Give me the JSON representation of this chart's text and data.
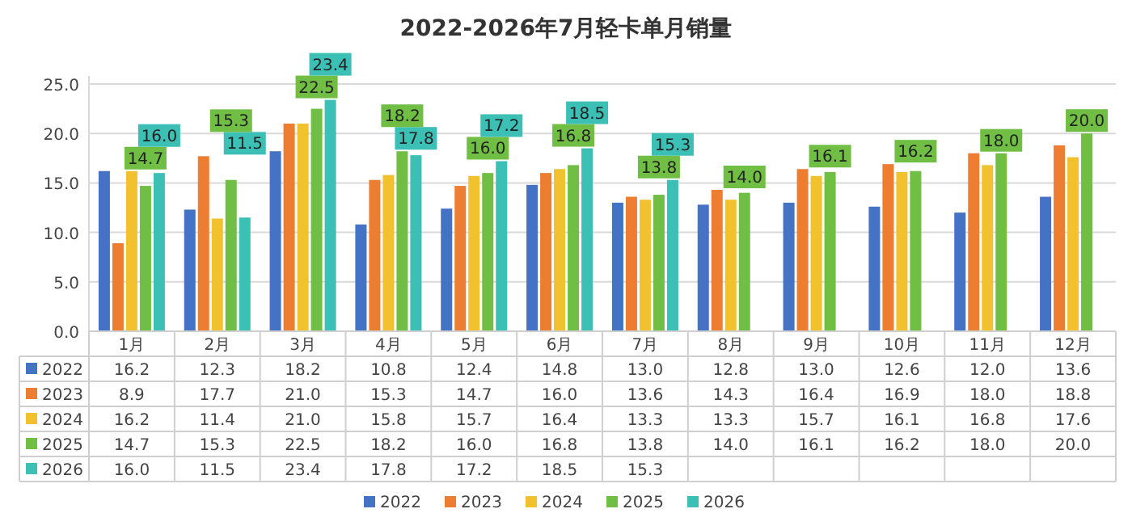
{
  "chart_data": {
    "type": "bar",
    "title": "2022-2026年7月轻卡单月销量",
    "categories": [
      "1月",
      "2月",
      "3月",
      "4月",
      "5月",
      "6月",
      "7月",
      "8月",
      "9月",
      "10月",
      "11月",
      "12月"
    ],
    "ylim": [
      0,
      25
    ],
    "yticks": [
      {
        "value": 0,
        "label": "0.0"
      },
      {
        "value": 5,
        "label": "5.0"
      },
      {
        "value": 10,
        "label": "10.0"
      },
      {
        "value": 15,
        "label": "15.0"
      },
      {
        "value": 20,
        "label": "20.0"
      },
      {
        "value": 25,
        "label": "25.0"
      }
    ],
    "grid": "y",
    "legend": "bottom",
    "series": [
      {
        "name": "2022",
        "color": "#4472c4",
        "values": [
          16.2,
          12.3,
          18.2,
          10.8,
          12.4,
          14.8,
          13.0,
          12.8,
          13.0,
          12.6,
          12.0,
          13.6
        ],
        "value_labels": [
          "16.2",
          "12.3",
          "18.2",
          "10.8",
          "12.4",
          "14.8",
          "13.0",
          "12.8",
          "13.0",
          "12.6",
          "12.0",
          "13.6"
        ]
      },
      {
        "name": "2023",
        "color": "#ed7d31",
        "values": [
          8.9,
          17.7,
          21.0,
          15.3,
          14.7,
          16.0,
          13.6,
          14.3,
          16.4,
          16.9,
          18.0,
          18.8
        ],
        "value_labels": [
          "8.9",
          "17.7",
          "21.0",
          "15.3",
          "14.7",
          "16.0",
          "13.6",
          "14.3",
          "16.4",
          "16.9",
          "18.0",
          "18.8"
        ]
      },
      {
        "name": "2024",
        "color": "#f2c12e",
        "values": [
          16.2,
          11.4,
          21.0,
          15.8,
          15.7,
          16.4,
          13.3,
          13.3,
          15.7,
          16.1,
          16.8,
          17.6
        ],
        "value_labels": [
          "16.2",
          "11.4",
          "21.0",
          "15.8",
          "15.7",
          "16.4",
          "13.3",
          "13.3",
          "15.7",
          "16.1",
          "16.8",
          "17.6"
        ]
      },
      {
        "name": "2025",
        "color": "#70bf44",
        "values": [
          14.7,
          15.3,
          22.5,
          18.2,
          16.0,
          16.8,
          13.8,
          14.0,
          16.1,
          16.2,
          18.0,
          20.0
        ],
        "value_labels": [
          "14.7",
          "15.3",
          "22.5",
          "18.2",
          "16.0",
          "16.8",
          "13.8",
          "14.0",
          "16.1",
          "16.2",
          "18.0",
          "20.0"
        ]
      },
      {
        "name": "2026",
        "color": "#3cbfb4",
        "values": [
          16.0,
          11.5,
          23.4,
          17.8,
          17.2,
          18.5,
          15.3,
          null,
          null,
          null,
          null,
          null
        ],
        "value_labels": [
          "16.0",
          "11.5",
          "23.4",
          "17.8",
          "17.2",
          "18.5",
          "15.3",
          null,
          null,
          null,
          null,
          null
        ]
      }
    ]
  }
}
